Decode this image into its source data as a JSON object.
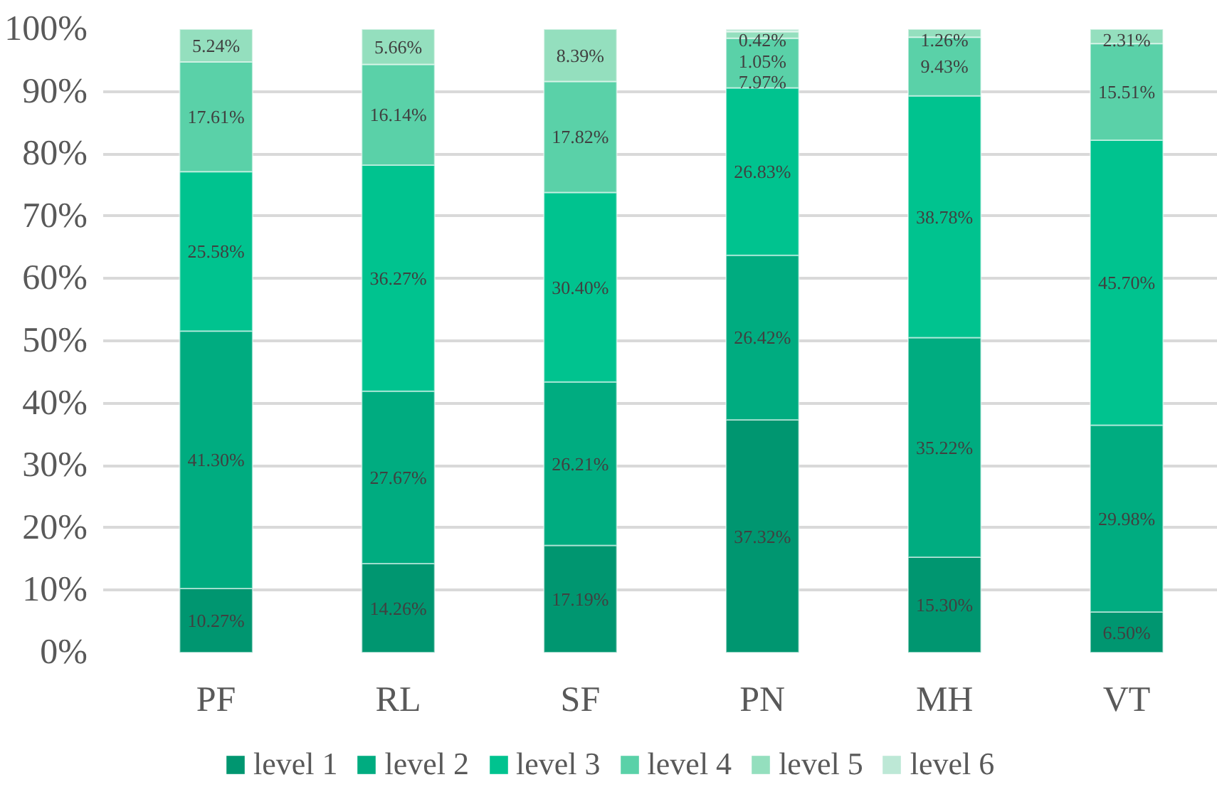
{
  "chart_data": {
    "type": "bar",
    "stacked": true,
    "categories": [
      "PF",
      "RL",
      "SF",
      "PN",
      "MH",
      "VT"
    ],
    "ylim": [
      0,
      100
    ],
    "yticks": [
      {
        "value": 0,
        "label": "0%"
      },
      {
        "value": 10,
        "label": "10%"
      },
      {
        "value": 20,
        "label": "20%"
      },
      {
        "value": 30,
        "label": "30%"
      },
      {
        "value": 40,
        "label": "40%"
      },
      {
        "value": 50,
        "label": "50%"
      },
      {
        "value": 60,
        "label": "60%"
      },
      {
        "value": 70,
        "label": "70%"
      },
      {
        "value": 80,
        "label": "80%"
      },
      {
        "value": 90,
        "label": "90%"
      },
      {
        "value": 100,
        "label": "100%"
      }
    ],
    "grid": "y",
    "legend": "bottom",
    "series": [
      {
        "name": "level 1",
        "color": "#009670",
        "values": [
          10.27,
          14.26,
          17.19,
          37.32,
          15.3,
          6.5
        ],
        "value_labels": [
          "10.27%",
          "14.26%",
          "17.19%",
          "37.32%",
          "15.30%",
          "6.50%"
        ]
      },
      {
        "name": "level 2",
        "color": "#00ac80",
        "values": [
          41.3,
          27.67,
          26.21,
          26.42,
          35.22,
          29.98
        ],
        "value_labels": [
          "41.30%",
          "27.67%",
          "26.21%",
          "26.42%",
          "35.22%",
          "29.98%"
        ]
      },
      {
        "name": "level 3",
        "color": "#00c38f",
        "values": [
          25.58,
          36.27,
          30.4,
          26.83,
          38.78,
          45.7
        ],
        "value_labels": [
          "25.58%",
          "36.27%",
          "30.40%",
          "26.83%",
          "38.78%",
          "45.70%"
        ]
      },
      {
        "name": "level 4",
        "color": "#5ad1a8",
        "values": [
          17.61,
          16.14,
          17.82,
          7.97,
          9.43,
          15.51
        ],
        "value_labels": [
          "17.61%",
          "16.14%",
          "17.82%",
          "7.97%",
          "9.43%",
          "15.51%"
        ]
      },
      {
        "name": "level 5",
        "color": "#94dfbe",
        "values": [
          5.24,
          5.66,
          8.39,
          1.05,
          1.26,
          2.31
        ],
        "value_labels": [
          "5.24%",
          "5.66%",
          "8.39%",
          "1.05%",
          "1.26%",
          "2.31%"
        ]
      },
      {
        "name": "level 6",
        "color": "#bde8d6",
        "values": [
          null,
          null,
          null,
          0.42,
          null,
          null
        ],
        "value_labels": [
          null,
          null,
          null,
          "0.42%",
          null,
          null
        ]
      }
    ]
  }
}
